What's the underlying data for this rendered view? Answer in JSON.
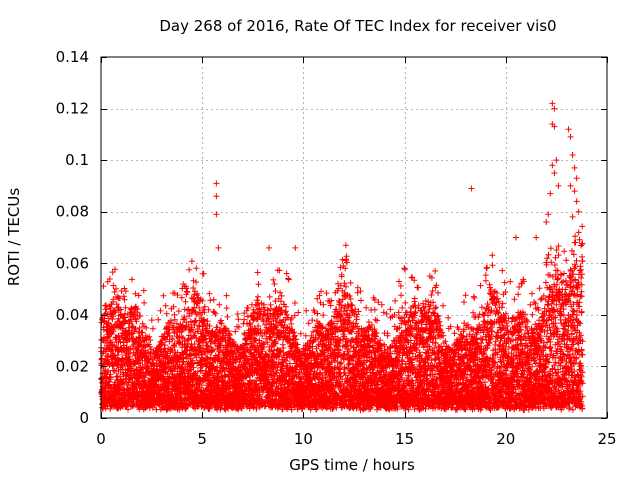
{
  "chart_data": {
    "type": "scatter",
    "title": "Day 268 of 2016, Rate Of TEC Index for receiver vis0",
    "xlabel": "GPS time / hours",
    "ylabel": "ROTI / TECUs",
    "xlim": [
      0,
      25
    ],
    "ylim": [
      0,
      0.14
    ],
    "x_ticks": [
      0,
      5,
      10,
      15,
      20,
      25
    ],
    "x_tick_labels": [
      "0",
      "5",
      "10",
      "15",
      "20",
      "25"
    ],
    "y_ticks": [
      0,
      0.02,
      0.04,
      0.06,
      0.08,
      0.1,
      0.12,
      0.14
    ],
    "y_tick_labels": [
      "0",
      "0.02",
      "0.04",
      "0.06",
      "0.08",
      "0.1",
      "0.12",
      "0.14"
    ],
    "grid": true,
    "marker": "+",
    "series": [
      {
        "name": "vis0 ROTI",
        "color": "#ff0000",
        "x_range": [
          0,
          23.8
        ],
        "bulk_y_range": [
          0.003,
          0.05
        ],
        "notable_points": [
          {
            "x": 5.7,
            "y": 0.091
          },
          {
            "x": 5.7,
            "y": 0.086
          },
          {
            "x": 5.7,
            "y": 0.079
          },
          {
            "x": 5.8,
            "y": 0.066
          },
          {
            "x": 8.3,
            "y": 0.066
          },
          {
            "x": 9.6,
            "y": 0.066
          },
          {
            "x": 12.1,
            "y": 0.067
          },
          {
            "x": 18.3,
            "y": 0.089
          },
          {
            "x": 20.5,
            "y": 0.07
          },
          {
            "x": 21.5,
            "y": 0.07
          },
          {
            "x": 22.3,
            "y": 0.122
          },
          {
            "x": 22.4,
            "y": 0.12
          },
          {
            "x": 22.3,
            "y": 0.114
          },
          {
            "x": 22.4,
            "y": 0.113
          },
          {
            "x": 22.5,
            "y": 0.1
          },
          {
            "x": 22.3,
            "y": 0.098
          },
          {
            "x": 22.4,
            "y": 0.095
          },
          {
            "x": 22.6,
            "y": 0.09
          },
          {
            "x": 22.2,
            "y": 0.087
          },
          {
            "x": 23.1,
            "y": 0.112
          },
          {
            "x": 23.2,
            "y": 0.109
          },
          {
            "x": 23.3,
            "y": 0.102
          },
          {
            "x": 23.4,
            "y": 0.097
          },
          {
            "x": 23.2,
            "y": 0.09
          },
          {
            "x": 23.5,
            "y": 0.093
          },
          {
            "x": 23.4,
            "y": 0.088
          },
          {
            "x": 23.5,
            "y": 0.084
          },
          {
            "x": 23.6,
            "y": 0.08
          },
          {
            "x": 23.3,
            "y": 0.078
          },
          {
            "x": 22.1,
            "y": 0.079
          },
          {
            "x": 22.0,
            "y": 0.076
          },
          {
            "x": 23.6,
            "y": 0.072
          },
          {
            "x": 23.4,
            "y": 0.068
          }
        ]
      }
    ]
  }
}
